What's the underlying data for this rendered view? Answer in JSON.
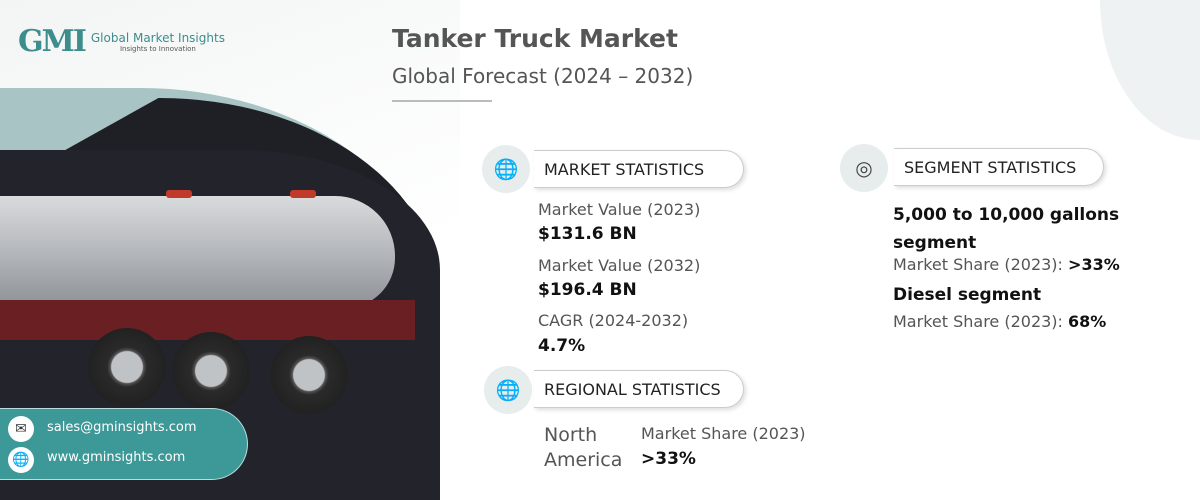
{
  "logo": {
    "mark": "GMI",
    "name": "Global Market Insights",
    "tagline": "Insights to Innovation"
  },
  "header": {
    "title": "Tanker Truck Market",
    "subtitle": "Global Forecast (2024 – 2032)"
  },
  "market_statistics": {
    "heading": "MARKET STATISTICS",
    "icon": "globe-chart-icon",
    "items": [
      {
        "label": "Market Value (2023)",
        "value": "$131.6 BN"
      },
      {
        "label": "Market Value (2032)",
        "value": "$196.4 BN"
      },
      {
        "label": "CAGR (2024-2032)",
        "value": "4.7%"
      }
    ]
  },
  "regional_statistics": {
    "heading": "REGIONAL STATISTICS",
    "icon": "globe-icon",
    "region_line1": "North",
    "region_line2": "America",
    "label": "Market Share (2023)",
    "value": ">33%"
  },
  "segment_statistics": {
    "heading": "SEGMENT STATISTICS",
    "icon": "target-chart-icon",
    "items": [
      {
        "name": "5,000 to 10,000 gallons segment",
        "label": "Market Share (2023):",
        "value": ">33%"
      },
      {
        "name": "Diesel segment",
        "label": "Market Share (2023):",
        "value": "68%"
      }
    ]
  },
  "contact": {
    "email": "sales@gminsights.com",
    "website": "www.gminsights.com"
  },
  "colors": {
    "accent": "#3d9997",
    "title": "#555555"
  }
}
